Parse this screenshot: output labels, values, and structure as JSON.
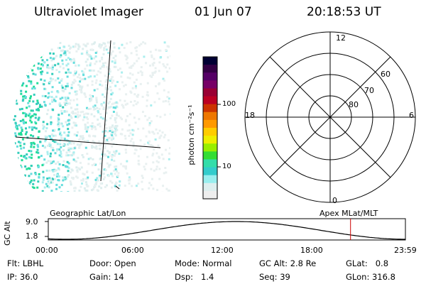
{
  "header": {
    "instrument": "Ultraviolet Imager",
    "date": "01 Jun 07",
    "time": "20:18:53 UT"
  },
  "colorbar": {
    "label": "photon cm⁻²s⁻¹",
    "ticks": [
      "100",
      "10"
    ],
    "colors": [
      "#000033",
      "#330044",
      "#550066",
      "#770066",
      "#990033",
      "#bb0022",
      "#cc3300",
      "#ee7700",
      "#ff9900",
      "#ffcc00",
      "#eeee00",
      "#99ee00",
      "#33dd33",
      "#33ddaa",
      "#33cccc",
      "#99eeee",
      "#ddeeee",
      "#eeeeee"
    ]
  },
  "polar_grid": {
    "mlt_labels": {
      "top": "12",
      "left": "18",
      "right": "6",
      "bottom": "0"
    },
    "lat_labels": [
      "60",
      "70",
      "80"
    ]
  },
  "alt_plot": {
    "left_title": "Geographic Lat/Lon",
    "right_title": "Apex MLat/MLT",
    "axis_label": "GC Alt",
    "y_ticks": [
      "9.0",
      "1.8"
    ],
    "x_ticks": [
      "00:00",
      "06:00",
      "12:00",
      "18:00",
      "23:59"
    ],
    "current_time_marker": "20:18",
    "marker_color": "#cc0000"
  },
  "status": {
    "flt_label": "Flt:",
    "flt_value": "LBHL",
    "ip_label": "IP:",
    "ip_value": "36.0",
    "door_label": "Door:",
    "door_value": "Open",
    "gain_label": "Gain:",
    "gain_value": "14",
    "mode_label": "Mode:",
    "mode_value": "Normal",
    "dsp_label": "Dsp:",
    "dsp_value": "1.4",
    "gcalt_label": "GC Alt:",
    "gcalt_value": "2.8 Re",
    "seq_label": "Seq:",
    "seq_value": "39",
    "glat_label": "GLat:",
    "glat_value": "0.8",
    "glon_label": "GLon:",
    "glon_value": "316.8"
  }
}
